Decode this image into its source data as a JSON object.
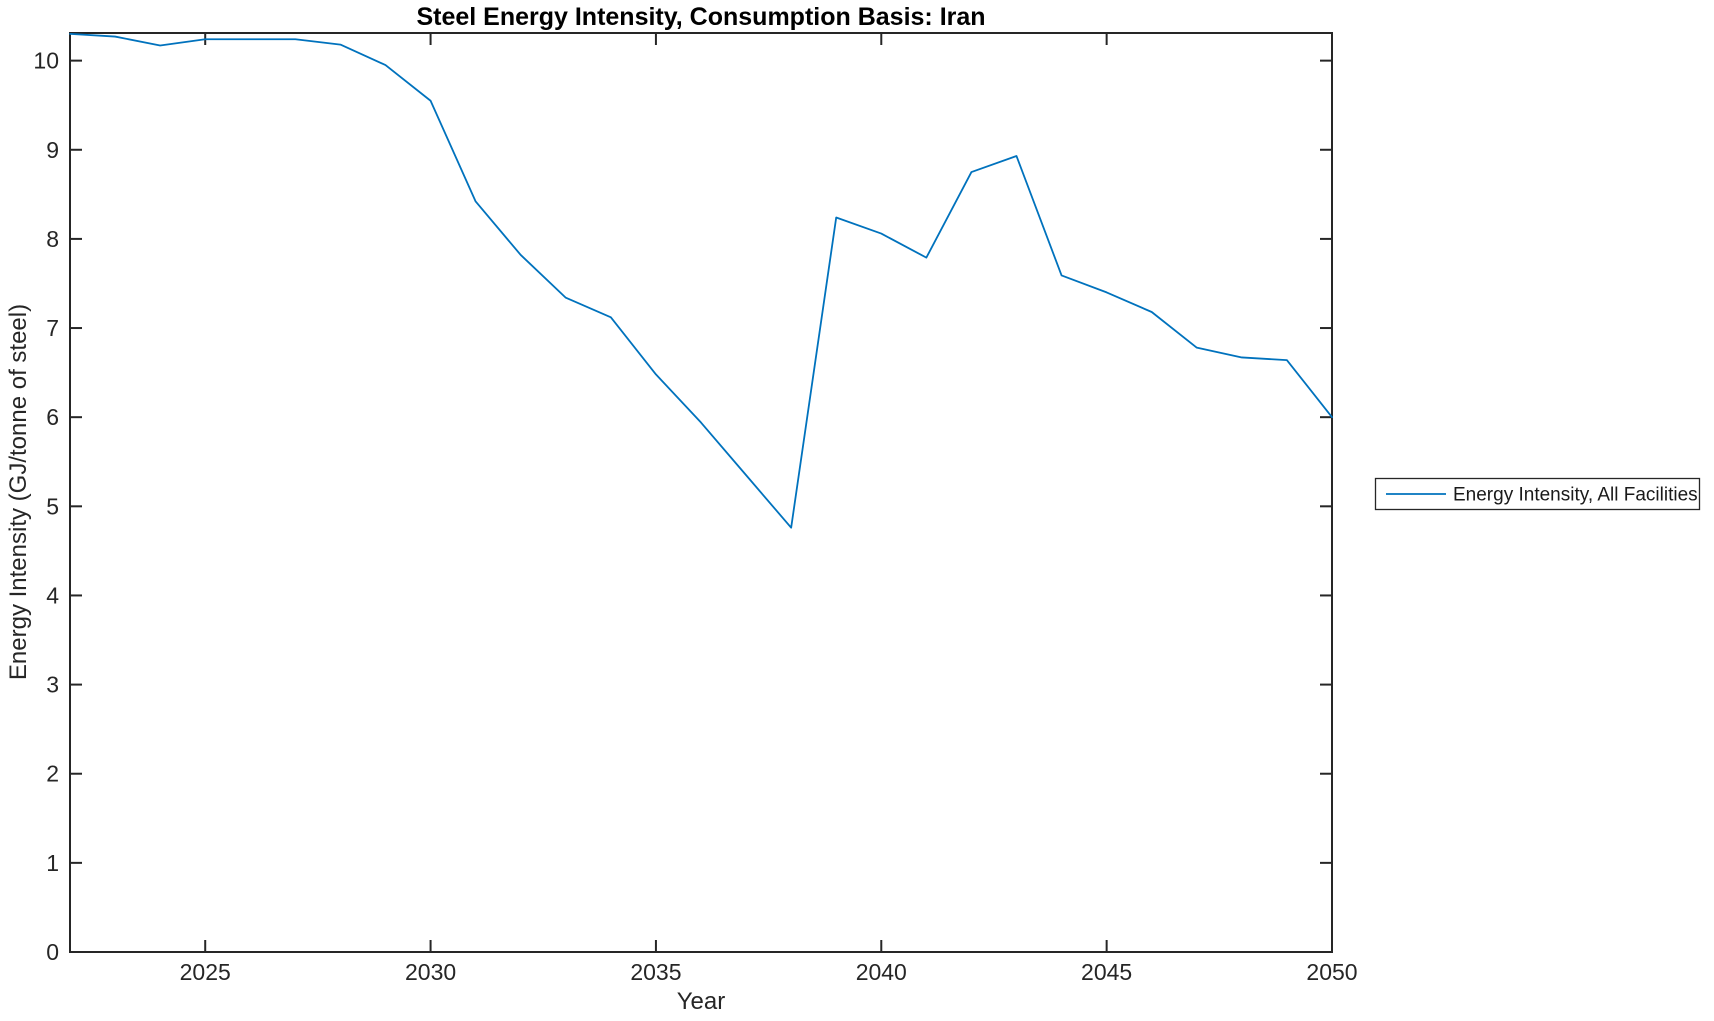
{
  "figure": {
    "background": "#ffffff"
  },
  "chart_data": {
    "type": "line",
    "title": "Steel Energy Intensity, Consumption Basis: Iran",
    "xlabel": "Year",
    "ylabel": "Energy Intensity (GJ/tonne of steel)",
    "x": [
      2022,
      2023,
      2024,
      2025,
      2026,
      2027,
      2028,
      2029,
      2030,
      2031,
      2032,
      2033,
      2034,
      2035,
      2036,
      2037,
      2038,
      2039,
      2040,
      2041,
      2042,
      2043,
      2044,
      2045,
      2046,
      2047,
      2048,
      2049,
      2050
    ],
    "series": [
      {
        "name": "Energy Intensity, All Facilities",
        "color": "#0072BD",
        "values": [
          10.3,
          10.27,
          10.17,
          10.24,
          10.24,
          10.24,
          10.18,
          9.95,
          9.55,
          8.42,
          7.82,
          7.34,
          7.12,
          6.48,
          5.94,
          5.35,
          4.76,
          8.24,
          8.06,
          7.79,
          8.75,
          8.93,
          7.59,
          7.4,
          7.18,
          6.78,
          6.67,
          6.64,
          6.0
        ]
      }
    ],
    "xlim": [
      2022,
      2050
    ],
    "ylim": [
      0,
      10.31
    ],
    "xticks": [
      2025,
      2030,
      2035,
      2040,
      2045,
      2050
    ],
    "yticks": [
      0,
      1,
      2,
      3,
      4,
      5,
      6,
      7,
      8,
      9,
      10
    ],
    "grid": false,
    "legend": {
      "position": "outside-right",
      "entries": [
        "Energy Intensity, All Facilities"
      ]
    },
    "axis_color": "#262626",
    "text_color": "#262626"
  }
}
